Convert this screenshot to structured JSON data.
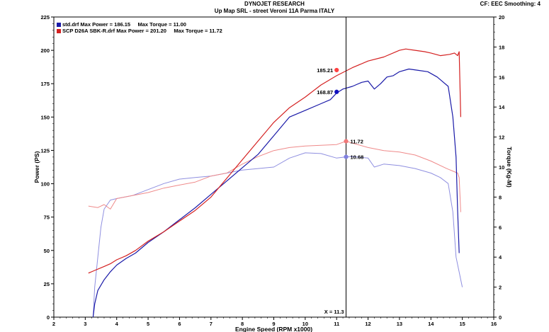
{
  "header": {
    "title": "DYNOJET RESEARCH",
    "subtitle": "Up Map SRL - street Veroni 11A Parma ITALY",
    "meta": "CF: EEC  Smoothing: 4"
  },
  "legend": [
    {
      "text": "std.drf Max Power = 186.15     Max Torque = 11.00",
      "color": "#1a1aa8"
    },
    {
      "text": "SCP D26A SBK-R.drf Max Power = 201.20     Max Torque = 11.72",
      "color": "#d42020"
    }
  ],
  "colors": {
    "std": "#1a1aa8",
    "std_light": "#8f8fe0",
    "scp": "#d42020",
    "scp_light": "#ef8a8a",
    "cursor": "#000000",
    "axis": "#000000"
  },
  "chart_data": {
    "type": "line",
    "title": "DYNOJET RESEARCH",
    "subtitle": "Up Map SRL - street Veroni 11A Parma ITALY",
    "xlabel": "Engine Speed (RPM x1000)",
    "ylabel": "Power (PS)",
    "y2label": "Torque (Kg-M)",
    "xlim": [
      2,
      16
    ],
    "ylim": [
      0,
      225
    ],
    "y2lim": [
      0,
      20
    ],
    "xticks": [
      2,
      3,
      4,
      5,
      6,
      7,
      8,
      9,
      10,
      11,
      12,
      13,
      14,
      15,
      16
    ],
    "yticks": [
      0,
      25,
      50,
      75,
      100,
      125,
      150,
      175,
      200,
      225
    ],
    "y2ticks": [
      0,
      2,
      4,
      6,
      8,
      10,
      12,
      14,
      16,
      18,
      20
    ],
    "grid": false,
    "cursor": {
      "x": 11.3,
      "label": "X = 11.3"
    },
    "series": [
      {
        "name": "std.drf",
        "quantity": "power",
        "axis": "left",
        "color": "#1a1aa8",
        "x": [
          3.25,
          3.3,
          3.4,
          3.6,
          3.8,
          4.0,
          4.3,
          4.6,
          5.0,
          5.5,
          6.0,
          6.5,
          7.0,
          7.5,
          8.0,
          8.5,
          9.0,
          9.5,
          10.0,
          10.5,
          10.8,
          11.0,
          11.2,
          11.5,
          11.8,
          12.0,
          12.2,
          12.4,
          12.6,
          12.8,
          13.0,
          13.3,
          13.6,
          13.9,
          14.2,
          14.4,
          14.55,
          14.7,
          14.8,
          14.85,
          14.9
        ],
        "y": [
          0,
          10,
          20,
          28,
          34,
          39,
          44,
          48,
          56,
          64,
          73,
          82,
          92,
          102,
          112,
          122,
          136,
          150,
          155,
          160,
          163,
          168,
          171,
          173,
          176,
          177,
          171,
          175,
          180,
          181,
          184,
          186,
          185,
          184,
          180,
          176,
          173,
          150,
          120,
          80,
          48
        ]
      },
      {
        "name": "SCP D26A SBK-R.drf",
        "quantity": "power",
        "axis": "left",
        "color": "#d42020",
        "x": [
          3.1,
          3.3,
          3.6,
          3.8,
          4.0,
          4.3,
          4.6,
          5.0,
          5.5,
          6.0,
          6.5,
          7.0,
          7.5,
          8.0,
          8.5,
          9.0,
          9.5,
          10.0,
          10.5,
          11.0,
          11.5,
          12.0,
          12.5,
          13.0,
          13.2,
          13.5,
          13.8,
          14.0,
          14.3,
          14.6,
          14.75,
          14.85,
          14.9,
          14.95
        ],
        "y": [
          33,
          35,
          38,
          40,
          43,
          46,
          50,
          57,
          64,
          72,
          80,
          90,
          104,
          118,
          132,
          146,
          157,
          165,
          174,
          181,
          187,
          192,
          195,
          200,
          201,
          200,
          199,
          198,
          196,
          197,
          198,
          196,
          199,
          150
        ]
      },
      {
        "name": "std.drf",
        "quantity": "torque",
        "axis": "right",
        "color": "#8f8fe0",
        "x": [
          3.25,
          3.3,
          3.4,
          3.5,
          3.6,
          3.8,
          4.0,
          4.5,
          5.0,
          5.5,
          6.0,
          6.5,
          7.0,
          7.5,
          8.0,
          8.5,
          9.0,
          9.5,
          10.0,
          10.5,
          11.0,
          11.3,
          11.5,
          12.0,
          12.2,
          12.5,
          13.0,
          13.5,
          14.0,
          14.3,
          14.55,
          14.7,
          14.8,
          14.9,
          15.0
        ],
        "y": [
          0,
          2.0,
          4.0,
          6.0,
          7.2,
          7.8,
          7.9,
          8.1,
          8.5,
          8.9,
          9.2,
          9.3,
          9.4,
          9.6,
          9.8,
          9.9,
          10.0,
          10.6,
          10.95,
          10.9,
          10.6,
          10.68,
          10.7,
          10.6,
          10.0,
          10.2,
          10.1,
          9.9,
          9.6,
          9.3,
          8.9,
          7.0,
          4.0,
          3.0,
          2.0
        ]
      },
      {
        "name": "SCP D26A SBK-R.drf",
        "quantity": "torque",
        "axis": "right",
        "color": "#ef8a8a",
        "x": [
          3.1,
          3.4,
          3.6,
          3.8,
          4.0,
          4.5,
          5.0,
          5.5,
          6.0,
          6.5,
          7.0,
          7.5,
          8.0,
          8.5,
          9.0,
          9.5,
          10.0,
          10.5,
          11.0,
          11.3,
          11.5,
          12.0,
          12.5,
          13.0,
          13.5,
          14.0,
          14.5,
          14.85,
          14.9,
          14.95
        ],
        "y": [
          7.4,
          7.3,
          7.5,
          7.2,
          7.9,
          8.1,
          8.3,
          8.6,
          8.8,
          9.0,
          9.4,
          9.6,
          10.2,
          10.7,
          11.1,
          11.3,
          11.4,
          11.45,
          11.5,
          11.72,
          11.6,
          11.3,
          11.1,
          11.0,
          10.8,
          10.4,
          9.9,
          9.6,
          9.3,
          7.0
        ]
      }
    ],
    "annotations": [
      {
        "text": "185.21",
        "x": 11.0,
        "y": 185.21,
        "axis": "left",
        "color": "#ff4040"
      },
      {
        "text": "168.87",
        "x": 11.0,
        "y": 168.87,
        "axis": "left",
        "color": "#1010c0"
      },
      {
        "text": "11.72",
        "x": 11.3,
        "y": 11.72,
        "axis": "right",
        "color": "#f07878"
      },
      {
        "text": "10.68",
        "x": 11.3,
        "y": 10.68,
        "axis": "right",
        "color": "#8080e0"
      }
    ]
  }
}
